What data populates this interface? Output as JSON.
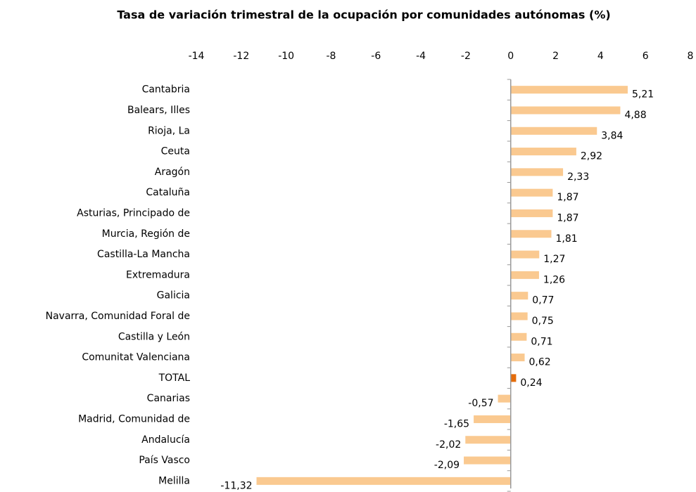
{
  "chart_data": {
    "type": "barh",
    "title": "Tasa de variación trimestral de la ocupación por comunidades autónomas (%)",
    "categories": [
      "Cantabria",
      "Balears, Illes",
      "Rioja, La",
      "Ceuta",
      "Aragón",
      "Cataluña",
      "Asturias, Principado de",
      "Murcia, Región de",
      "Castilla-La Mancha",
      "Extremadura",
      "Galicia",
      "Navarra, Comunidad Foral de",
      "Castilla y León",
      "Comunitat Valenciana",
      "TOTAL",
      "Canarias",
      "Madrid, Comunidad de",
      "Andalucía",
      "País Vasco",
      "Melilla"
    ],
    "values": [
      5.21,
      4.88,
      3.84,
      2.92,
      2.33,
      1.87,
      1.87,
      1.81,
      1.27,
      1.26,
      0.77,
      0.75,
      0.71,
      0.62,
      0.24,
      -0.57,
      -1.65,
      -2.02,
      -2.09,
      -11.32
    ],
    "value_labels": [
      "5,21",
      "4,88",
      "3,84",
      "2,92",
      "2,33",
      "1,87",
      "1,87",
      "1,81",
      "1,27",
      "1,26",
      "0,77",
      "0,75",
      "0,71",
      "0,62",
      "0,24",
      "-0,57",
      "-1,65",
      "-2,02",
      "-2,09",
      "-11,32"
    ],
    "colors": [
      "#fac990",
      "#fac990",
      "#fac990",
      "#fac990",
      "#fac990",
      "#fac990",
      "#fac990",
      "#fac990",
      "#fac990",
      "#fac990",
      "#fac990",
      "#fac990",
      "#fac990",
      "#fac990",
      "#e46c0a",
      "#fac990",
      "#fac990",
      "#fac990",
      "#fac990",
      "#fac990"
    ],
    "xlim": [
      -14,
      8
    ],
    "xticks": [
      -14,
      -12,
      -10,
      -8,
      -6,
      -4,
      -2,
      0,
      2,
      4,
      6,
      8
    ],
    "grid": false
  }
}
